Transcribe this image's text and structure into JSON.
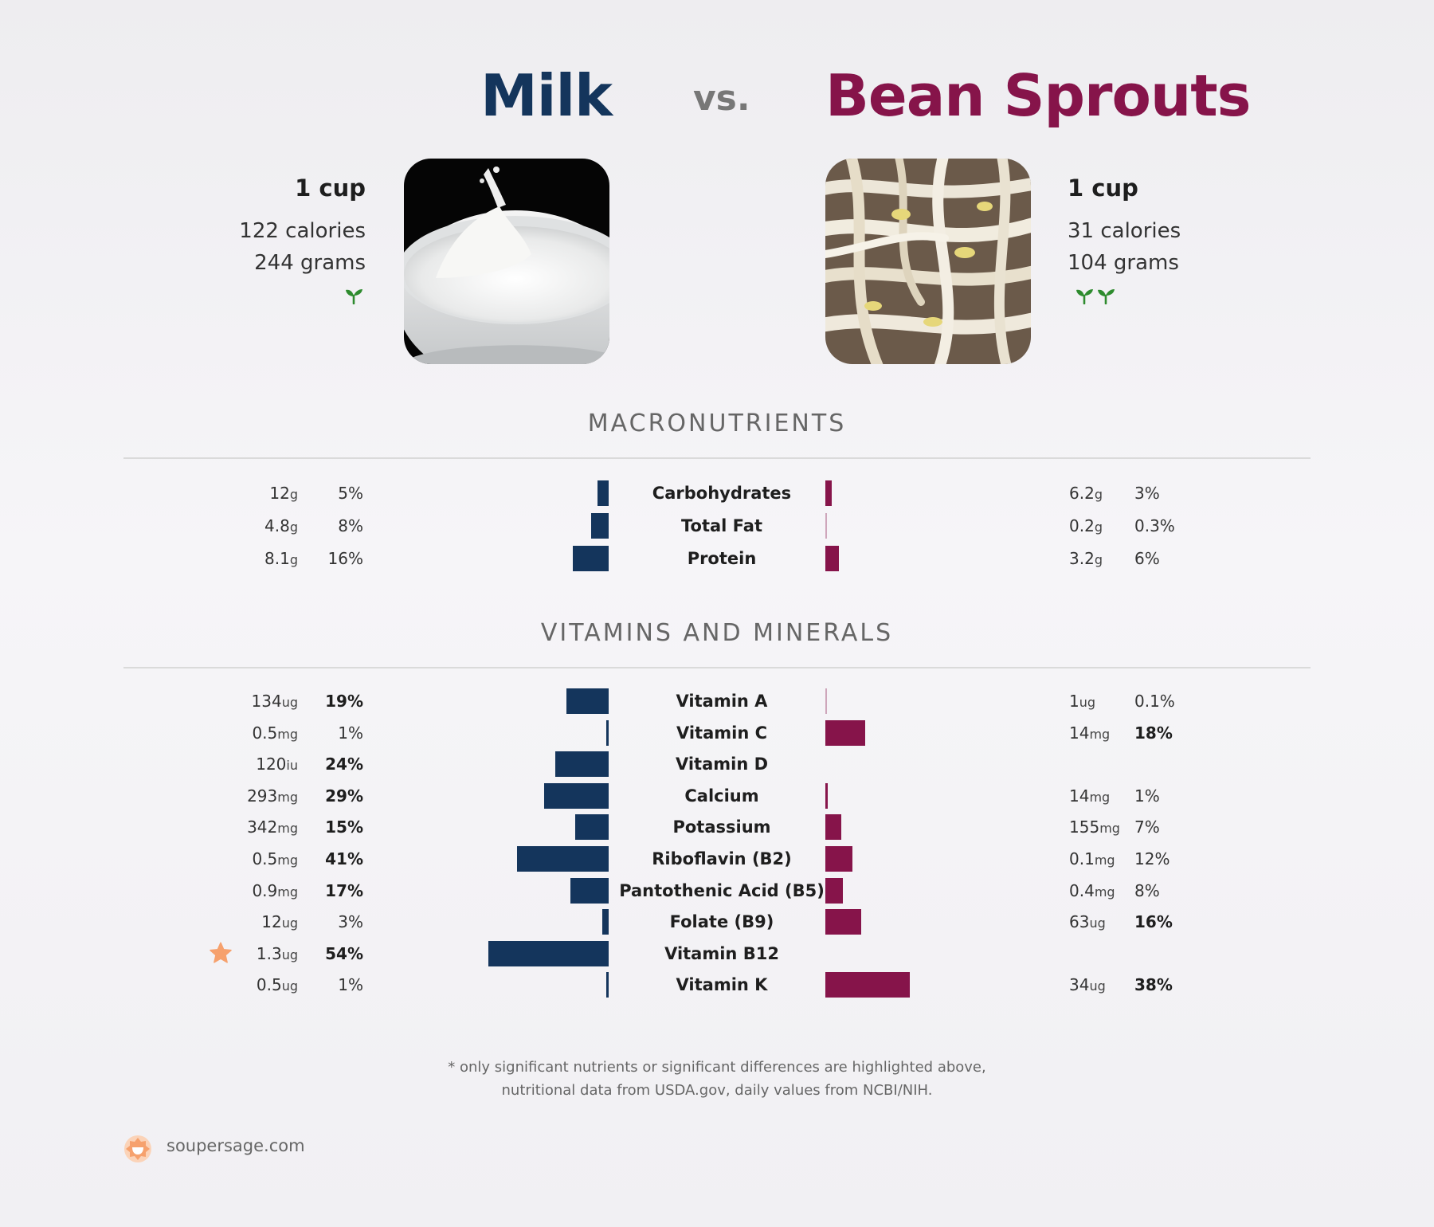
{
  "header": {
    "left_food": "Milk",
    "vs_label": "vs.",
    "right_food": "Bean Sprouts",
    "left_color": "#14355c",
    "right_color": "#86144a"
  },
  "left": {
    "portion": "1 cup",
    "calories": "122 calories",
    "grams": "244 grams",
    "sprout_count": 1,
    "image": "milk-splash-photo"
  },
  "right": {
    "portion": "1 cup",
    "calories": "31 calories",
    "grams": "104 grams",
    "sprout_count": 2,
    "image": "bean-sprouts-photo"
  },
  "macros_title": "MACRONUTRIENTS",
  "vitamins_title": "VITAMINS AND MINERALS",
  "chart_data": {
    "type": "bar",
    "layout": "diverging-horizontal",
    "bar_metric": "percent of daily value",
    "series": [
      {
        "name": "Milk",
        "color": "#14355c"
      },
      {
        "name": "Bean Sprouts",
        "color": "#86144a"
      }
    ],
    "macronutrients": [
      {
        "name": "Carbohydrates",
        "left": {
          "amount": "12",
          "unit": "g",
          "pct": 5,
          "pct_label": "5%",
          "bold": false
        },
        "right": {
          "amount": "6.2",
          "unit": "g",
          "pct": 3,
          "pct_label": "3%",
          "bold": false
        }
      },
      {
        "name": "Total Fat",
        "left": {
          "amount": "4.8",
          "unit": "g",
          "pct": 8,
          "pct_label": "8%",
          "bold": false
        },
        "right": {
          "amount": "0.2",
          "unit": "g",
          "pct": 0.3,
          "pct_label": "0.3%",
          "bold": false
        }
      },
      {
        "name": "Protein",
        "left": {
          "amount": "8.1",
          "unit": "g",
          "pct": 16,
          "pct_label": "16%",
          "bold": false
        },
        "right": {
          "amount": "3.2",
          "unit": "g",
          "pct": 6,
          "pct_label": "6%",
          "bold": false
        }
      }
    ],
    "vitamins": [
      {
        "name": "Vitamin A",
        "left": {
          "amount": "134",
          "unit": "ug",
          "pct": 19,
          "pct_label": "19%",
          "bold": true
        },
        "right": {
          "amount": "1",
          "unit": "ug",
          "pct": 0.1,
          "pct_label": "0.1%",
          "bold": false
        }
      },
      {
        "name": "Vitamin C",
        "left": {
          "amount": "0.5",
          "unit": "mg",
          "pct": 1,
          "pct_label": "1%",
          "bold": false
        },
        "right": {
          "amount": "14",
          "unit": "mg",
          "pct": 18,
          "pct_label": "18%",
          "bold": true
        }
      },
      {
        "name": "Vitamin D",
        "left": {
          "amount": "120",
          "unit": "iu",
          "pct": 24,
          "pct_label": "24%",
          "bold": true
        },
        "right": null
      },
      {
        "name": "Calcium",
        "left": {
          "amount": "293",
          "unit": "mg",
          "pct": 29,
          "pct_label": "29%",
          "bold": true
        },
        "right": {
          "amount": "14",
          "unit": "mg",
          "pct": 1,
          "pct_label": "1%",
          "bold": false
        }
      },
      {
        "name": "Potassium",
        "left": {
          "amount": "342",
          "unit": "mg",
          "pct": 15,
          "pct_label": "15%",
          "bold": true
        },
        "right": {
          "amount": "155",
          "unit": "mg",
          "pct": 7,
          "pct_label": "7%",
          "bold": false
        }
      },
      {
        "name": "Riboflavin (B2)",
        "left": {
          "amount": "0.5",
          "unit": "mg",
          "pct": 41,
          "pct_label": "41%",
          "bold": true
        },
        "right": {
          "amount": "0.1",
          "unit": "mg",
          "pct": 12,
          "pct_label": "12%",
          "bold": false
        }
      },
      {
        "name": "Pantothenic Acid (B5)",
        "left": {
          "amount": "0.9",
          "unit": "mg",
          "pct": 17,
          "pct_label": "17%",
          "bold": true
        },
        "right": {
          "amount": "0.4",
          "unit": "mg",
          "pct": 8,
          "pct_label": "8%",
          "bold": false
        }
      },
      {
        "name": "Folate (B9)",
        "left": {
          "amount": "12",
          "unit": "ug",
          "pct": 3,
          "pct_label": "3%",
          "bold": false
        },
        "right": {
          "amount": "63",
          "unit": "ug",
          "pct": 16,
          "pct_label": "16%",
          "bold": true
        }
      },
      {
        "name": "Vitamin B12",
        "left": {
          "amount": "1.3",
          "unit": "ug",
          "pct": 54,
          "pct_label": "54%",
          "bold": true,
          "star": true
        },
        "right": null
      },
      {
        "name": "Vitamin K",
        "left": {
          "amount": "0.5",
          "unit": "ug",
          "pct": 1,
          "pct_label": "1%",
          "bold": false
        },
        "right": {
          "amount": "34",
          "unit": "ug",
          "pct": 38,
          "pct_label": "38%",
          "bold": true
        }
      }
    ]
  },
  "footnote": {
    "line1": "* only significant nutrients or significant differences are highlighted above,",
    "line2": "nutritional data from USDA.gov, daily values from NCBI/NIH."
  },
  "brand": {
    "name": "soupersage.com",
    "logo_color": "#f6a16d"
  },
  "icons": {
    "sprout": "sprout-icon",
    "star": "star-icon",
    "logo": "soupersage-logo-icon",
    "star_color": "#f6a16d",
    "sprout_color": "#2e8b2e"
  }
}
